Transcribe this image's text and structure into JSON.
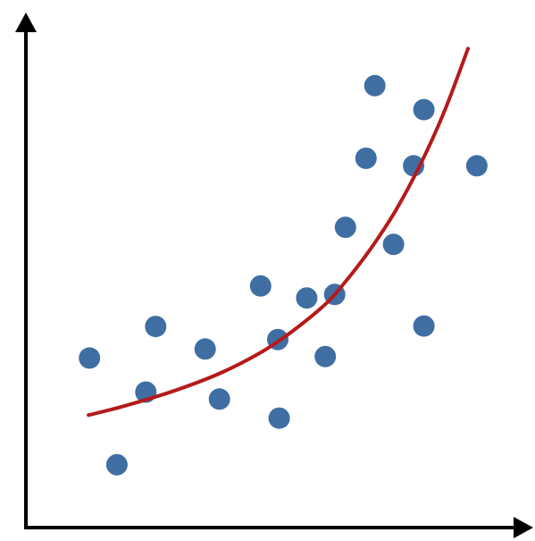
{
  "chart_data": {
    "type": "scatter",
    "title": "",
    "xlabel": "",
    "ylabel": "",
    "xlim": [
      0,
      100
    ],
    "ylim": [
      0,
      100
    ],
    "grid": false,
    "axis_ticks": false,
    "points": [
      {
        "x": 12.6,
        "y": 33.5
      },
      {
        "x": 18.2,
        "y": 12.2
      },
      {
        "x": 24.1,
        "y": 26.7
      },
      {
        "x": 26.1,
        "y": 39.8
      },
      {
        "x": 36.2,
        "y": 35.3
      },
      {
        "x": 39.1,
        "y": 25.3
      },
      {
        "x": 47.5,
        "y": 47.9
      },
      {
        "x": 51.0,
        "y": 37.2
      },
      {
        "x": 51.3,
        "y": 21.5
      },
      {
        "x": 56.9,
        "y": 45.5
      },
      {
        "x": 60.7,
        "y": 33.8
      },
      {
        "x": 62.6,
        "y": 46.2
      },
      {
        "x": 64.8,
        "y": 59.6
      },
      {
        "x": 69.0,
        "y": 73.4
      },
      {
        "x": 70.8,
        "y": 87.9
      },
      {
        "x": 74.6,
        "y": 56.2
      },
      {
        "x": 78.7,
        "y": 71.9
      },
      {
        "x": 80.8,
        "y": 83.1
      },
      {
        "x": 80.8,
        "y": 39.9
      },
      {
        "x": 91.6,
        "y": 71.9
      }
    ],
    "trend_line": {
      "type": "curve",
      "x": [
        12.4,
        20,
        30,
        40,
        50,
        60,
        65,
        70,
        75,
        80,
        85,
        89.8
      ],
      "y": [
        22.1,
        24.0,
        27.0,
        30.8,
        36.1,
        43.6,
        49.0,
        55.4,
        62.9,
        72.0,
        82.8,
        95.3
      ]
    },
    "colors": {
      "points": "#3f6ea3",
      "trend_line": "#b51a1a",
      "axes": "#000000"
    }
  }
}
